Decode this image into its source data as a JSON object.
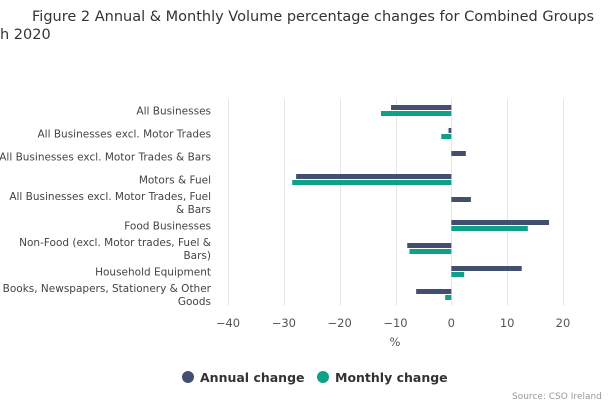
{
  "chart_data": {
    "type": "bar",
    "orientation": "horizontal",
    "title_line1": "Figure 2 Annual & Monthly Volume percentage changes for Combined Groups",
    "title_line2": "h 2020",
    "categories": [
      [
        "All Businesses"
      ],
      [
        "All Businesses excl. Motor Trades"
      ],
      [
        "All Businesses excl. Motor Trades & Bars"
      ],
      [
        "Motors & Fuel"
      ],
      [
        "All Businesses excl. Motor Trades, Fuel",
        "& Bars"
      ],
      [
        "Food Businesses"
      ],
      [
        "Non-Food (excl. Motor trades, Fuel &",
        "Bars)"
      ],
      [
        "Household Equipment"
      ],
      [
        "Books, Newspapers, Stationery & Other",
        "Goods"
      ]
    ],
    "series": [
      {
        "name": "Annual change",
        "color": "#434f6e",
        "values": [
          -10.8,
          -0.5,
          2.6,
          -27.8,
          3.5,
          17.5,
          -7.9,
          12.6,
          -6.3
        ]
      },
      {
        "name": "Monthly change",
        "color": "#0fa187",
        "values": [
          -12.6,
          -1.8,
          0,
          -28.5,
          0,
          13.7,
          -7.5,
          2.3,
          -1.1
        ]
      }
    ],
    "xlabel": "%",
    "xlim": [
      -40,
      20
    ],
    "xticks": [
      -40,
      -30,
      -20,
      -10,
      0,
      10,
      20
    ],
    "tick_labels": [
      "−40",
      "−30",
      "−20",
      "−10",
      "0",
      "10",
      "20"
    ],
    "grid": true,
    "legend_position": "bottom"
  },
  "source": "Source: CSO Ireland"
}
